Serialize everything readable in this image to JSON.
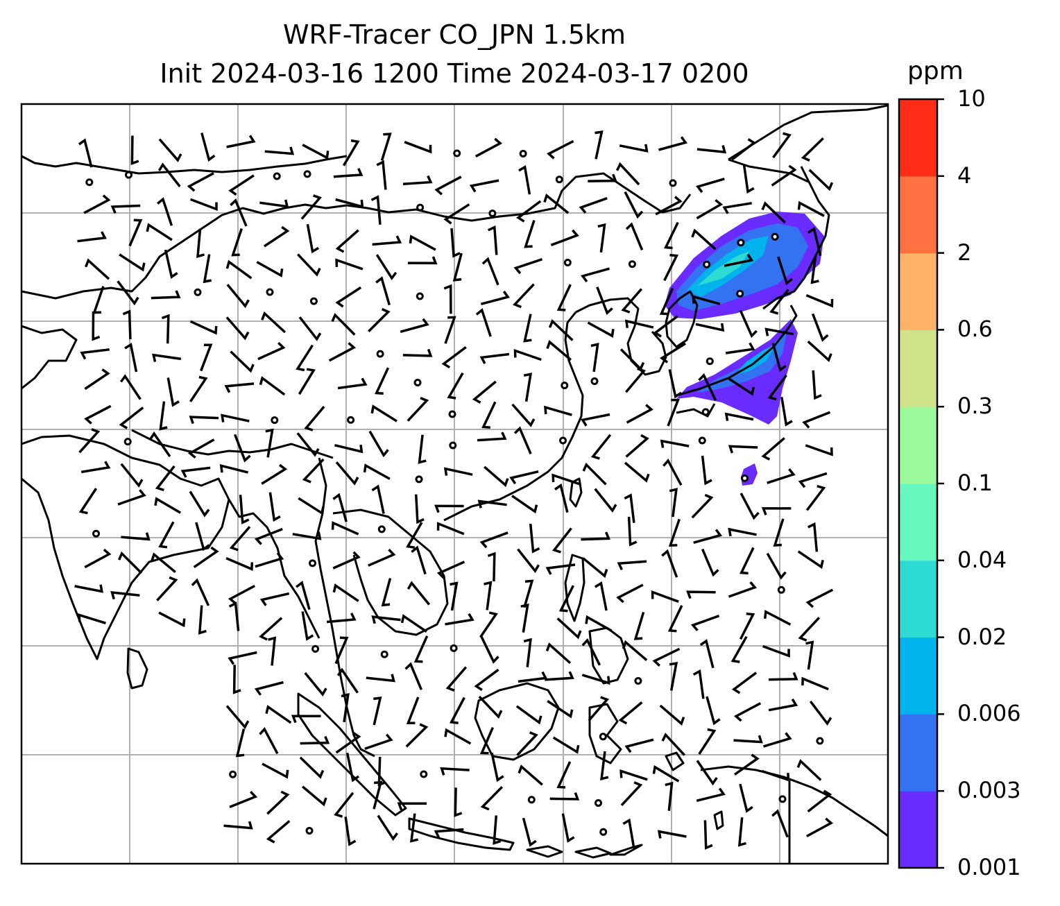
{
  "title": {
    "line1": "WRF-Tracer CO_JPN 1.5km",
    "line2": "Init 2024-03-16 1200 Time 2024-03-17 0200"
  },
  "colorbar": {
    "unit": "ppm",
    "tick_labels": [
      "0.001",
      "0.003",
      "0.006",
      "0.02",
      "0.04",
      "0.1",
      "0.3",
      "0.6",
      "2",
      "4",
      "10"
    ],
    "colors": [
      "#6a2bff",
      "#3373f2",
      "#00b3ec",
      "#2ddbd3",
      "#66f7bf",
      "#9bfb9a",
      "#cfe28a",
      "#fdb266",
      "#ff7141",
      "#ff2d18"
    ]
  },
  "map": {
    "gridlines": "on",
    "coastline_color": "#000000",
    "barb_color": "#000000",
    "tracer_fill_colors": [
      "#6a2bff",
      "#3373f2",
      "#00b3ec",
      "#2ddbd3"
    ]
  }
}
